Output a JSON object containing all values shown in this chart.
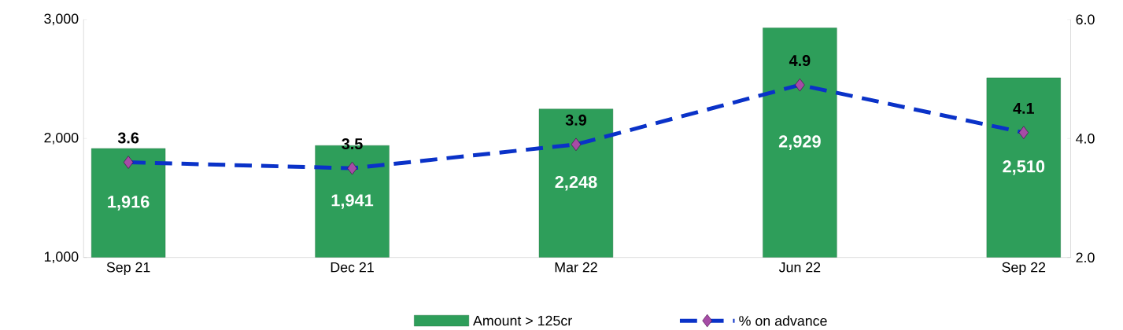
{
  "chart_data": {
    "type": "bar",
    "categories": [
      "Sep 21",
      "Dec 21",
      "Mar 22",
      "Jun 22",
      "Sep 22"
    ],
    "series": [
      {
        "name": "Amount > 125cr",
        "color": "#2e9e5a",
        "values": [
          1916,
          1941,
          2248,
          2929,
          2510
        ],
        "value_labels": [
          "1,916",
          "1,941",
          "2,248",
          "2,929",
          "2,510"
        ]
      },
      {
        "name": "% on advance",
        "type": "line",
        "axis": "y2",
        "color": "#0a32c8",
        "marker": "diamond",
        "line_style": "dashed",
        "values": [
          3.6,
          3.5,
          3.9,
          4.9,
          4.1
        ],
        "value_labels": [
          "3.6",
          "3.5",
          "3.9",
          "4.9",
          "4.1"
        ]
      }
    ],
    "ylim": [
      1000,
      3000
    ],
    "yticks": [
      {
        "value": 1000,
        "label": "1,000"
      },
      {
        "value": 2000,
        "label": "2,000"
      },
      {
        "value": 3000,
        "label": "3,000"
      }
    ],
    "y2lim": [
      2.0,
      6.0
    ],
    "y2ticks": [
      {
        "value": 2.0,
        "label": "2.0"
      },
      {
        "value": 4.0,
        "label": "4.0"
      },
      {
        "value": 6.0,
        "label": "6.0"
      }
    ],
    "legend": "bottom",
    "grid": false
  }
}
